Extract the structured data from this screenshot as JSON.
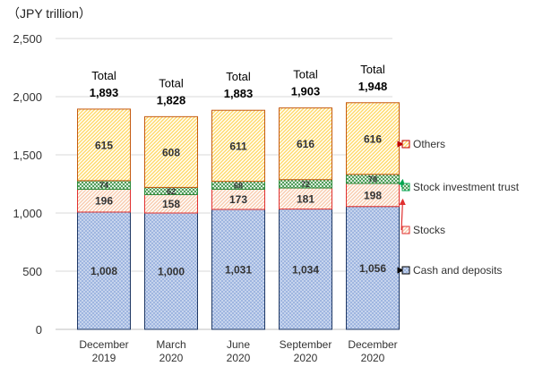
{
  "chart_data": {
    "type": "bar",
    "stacked": true,
    "unit_label": "（JPY trillion）",
    "title": "",
    "xlabel": "",
    "ylabel": "",
    "ylim": [
      0,
      2500
    ],
    "yticks": [
      "0",
      "500",
      "1,000",
      "1,500",
      "2,000",
      "2,500"
    ],
    "ytick_values": [
      0,
      500,
      1000,
      1500,
      2000,
      2500
    ],
    "grid": true,
    "categories": [
      [
        "December",
        "2019"
      ],
      [
        "March",
        "2020"
      ],
      [
        "June",
        "2020"
      ],
      [
        "September",
        "2020"
      ],
      [
        "December",
        "2020"
      ]
    ],
    "series": [
      {
        "name": "Cash and deposits",
        "values": [
          1008,
          1000,
          1031,
          1034,
          1056
        ],
        "labels": [
          "1,008",
          "1,000",
          "1,031",
          "1,034",
          "1,056"
        ],
        "color": "#8EA9DB",
        "edge": "#1F3864"
      },
      {
        "name": "Stocks",
        "values": [
          196,
          158,
          173,
          181,
          198
        ],
        "labels": [
          "196",
          "158",
          "173",
          "181",
          "198"
        ],
        "color": "#F8CBAD",
        "edge": "#E03030"
      },
      {
        "name": "Stock investment trust",
        "values": [
          74,
          62,
          68,
          72,
          78
        ],
        "labels": [
          "74",
          "62",
          "68",
          "72",
          "78"
        ],
        "color": "#A9D18E",
        "edge": "#2E8B3A"
      },
      {
        "name": "Others",
        "values": [
          615,
          608,
          611,
          616,
          616
        ],
        "labels": [
          "615",
          "608",
          "611",
          "616",
          "616"
        ],
        "color": "#FFD966",
        "edge": "#C55A11"
      }
    ],
    "totals": {
      "word": "Total",
      "values": [
        1893,
        1828,
        1883,
        1903,
        1948
      ],
      "labels": [
        "1,893",
        "1,828",
        "1,883",
        "1,903",
        "1,948"
      ]
    },
    "legend": {
      "placement": "right",
      "items": [
        {
          "name": "Others",
          "color": "#C00000"
        },
        {
          "name": "Stock investment trust",
          "color": "#00A651"
        },
        {
          "name": "Stocks",
          "color": "#E03030"
        },
        {
          "name": "Cash and deposits",
          "color": "#000000"
        }
      ]
    }
  }
}
